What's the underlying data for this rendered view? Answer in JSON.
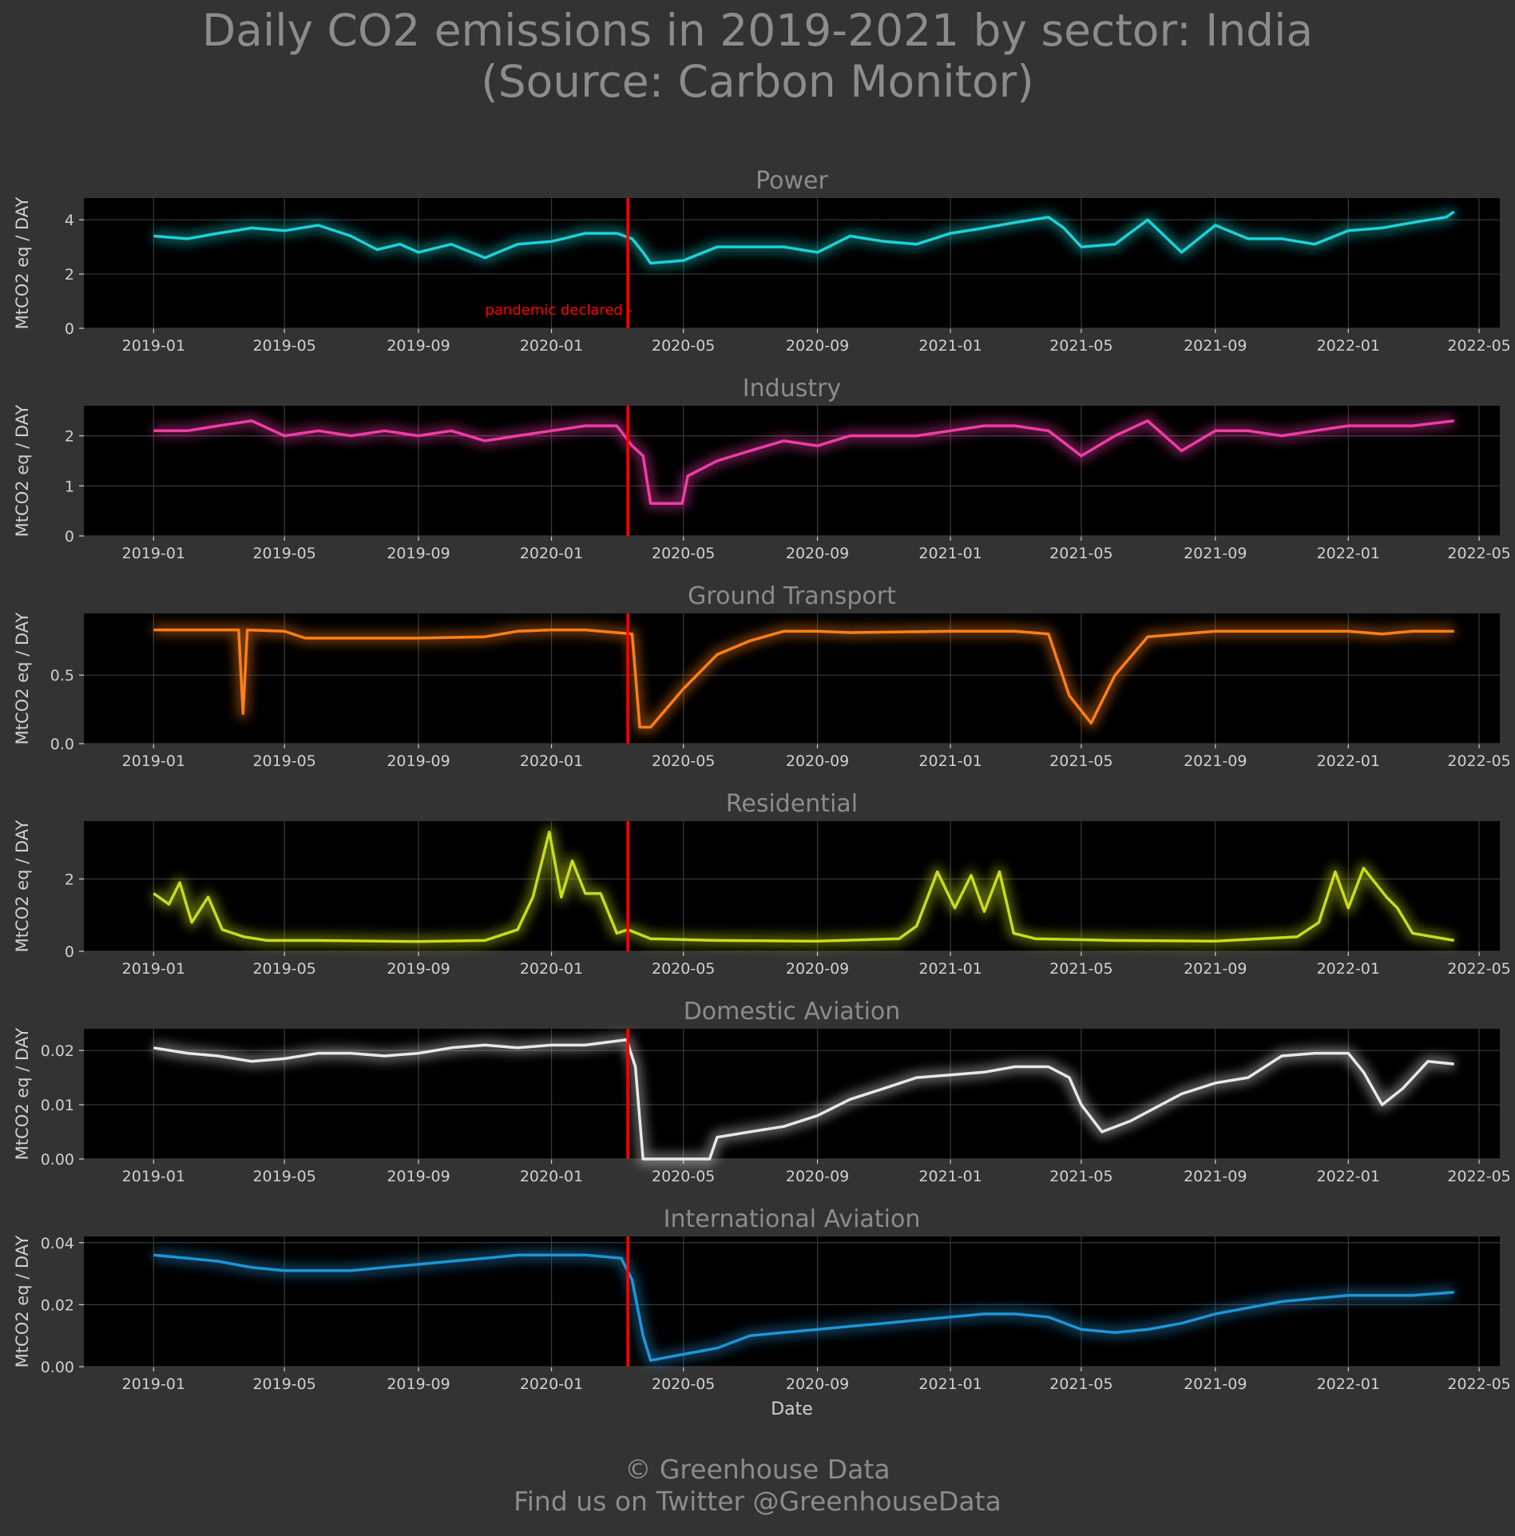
{
  "header": {
    "title_line1": "Daily CO2 emissions in 2019-2021 by sector: India",
    "title_line2": "(Source: Carbon Monitor)"
  },
  "footer": {
    "line1": "© Greenhouse Data",
    "line2": "Find us on Twitter @GreenhouseData"
  },
  "colors": {
    "page_background": "#333333",
    "plot_background": "#000000",
    "grid": "#3a3a3a",
    "text": "#d0d0d0",
    "title_text": "#8c8c8c",
    "pandemic_line": "#ff0000"
  },
  "chart_data": {
    "type": "line",
    "xlabel": "Date",
    "ylabel": "MtCO2 eq / DAY",
    "x_ticks": [
      "2019-01",
      "2019-05",
      "2019-09",
      "2020-01",
      "2020-05",
      "2020-09",
      "2021-01",
      "2021-05",
      "2021-09",
      "2022-01",
      "2022-05"
    ],
    "x_range": [
      "2018-10-29",
      "2022-05-20"
    ],
    "annotation": {
      "date": "2020-03-11",
      "label": "pandemic declared -"
    },
    "grid": true,
    "panels": [
      {
        "name": "Power",
        "color": "#1ad3d8",
        "ylim": [
          0,
          4.8
        ],
        "yticks": [
          0,
          2,
          4
        ],
        "ytick_labels": [
          "0",
          "2",
          "4"
        ],
        "points": [
          [
            "2019-01-01",
            3.4
          ],
          [
            "2019-02-01",
            3.3
          ],
          [
            "2019-03-01",
            3.5
          ],
          [
            "2019-04-01",
            3.7
          ],
          [
            "2019-05-01",
            3.6
          ],
          [
            "2019-06-01",
            3.8
          ],
          [
            "2019-07-01",
            3.4
          ],
          [
            "2019-07-25",
            2.9
          ],
          [
            "2019-08-15",
            3.1
          ],
          [
            "2019-09-01",
            2.8
          ],
          [
            "2019-10-01",
            3.1
          ],
          [
            "2019-11-01",
            2.6
          ],
          [
            "2019-12-01",
            3.1
          ],
          [
            "2020-01-01",
            3.2
          ],
          [
            "2020-02-01",
            3.5
          ],
          [
            "2020-03-01",
            3.5
          ],
          [
            "2020-03-15",
            3.3
          ],
          [
            "2020-03-25",
            2.8
          ],
          [
            "2020-04-01",
            2.4
          ],
          [
            "2020-05-01",
            2.5
          ],
          [
            "2020-06-01",
            3.0
          ],
          [
            "2020-07-01",
            3.0
          ],
          [
            "2020-08-01",
            3.0
          ],
          [
            "2020-09-01",
            2.8
          ],
          [
            "2020-10-01",
            3.4
          ],
          [
            "2020-11-01",
            3.2
          ],
          [
            "2020-12-01",
            3.1
          ],
          [
            "2021-01-01",
            3.5
          ],
          [
            "2021-02-01",
            3.7
          ],
          [
            "2021-03-01",
            3.9
          ],
          [
            "2021-04-01",
            4.1
          ],
          [
            "2021-04-15",
            3.7
          ],
          [
            "2021-05-01",
            3.0
          ],
          [
            "2021-06-01",
            3.1
          ],
          [
            "2021-07-01",
            4.0
          ],
          [
            "2021-08-01",
            2.8
          ],
          [
            "2021-09-01",
            3.8
          ],
          [
            "2021-10-01",
            3.3
          ],
          [
            "2021-11-01",
            3.3
          ],
          [
            "2021-12-01",
            3.1
          ],
          [
            "2022-01-01",
            3.6
          ],
          [
            "2022-02-01",
            3.7
          ],
          [
            "2022-03-01",
            3.9
          ],
          [
            "2022-04-01",
            4.1
          ],
          [
            "2022-04-08",
            4.3
          ]
        ]
      },
      {
        "name": "Industry",
        "color": "#f03ca6",
        "ylim": [
          0,
          2.6
        ],
        "yticks": [
          0,
          1,
          2
        ],
        "ytick_labels": [
          "0",
          "1",
          "2"
        ],
        "points": [
          [
            "2019-01-01",
            2.1
          ],
          [
            "2019-02-01",
            2.1
          ],
          [
            "2019-03-01",
            2.2
          ],
          [
            "2019-04-01",
            2.3
          ],
          [
            "2019-05-01",
            2.0
          ],
          [
            "2019-06-01",
            2.1
          ],
          [
            "2019-07-01",
            2.0
          ],
          [
            "2019-08-01",
            2.1
          ],
          [
            "2019-09-01",
            2.0
          ],
          [
            "2019-10-01",
            2.1
          ],
          [
            "2019-11-01",
            1.9
          ],
          [
            "2019-12-01",
            2.0
          ],
          [
            "2020-01-01",
            2.1
          ],
          [
            "2020-02-01",
            2.2
          ],
          [
            "2020-03-01",
            2.2
          ],
          [
            "2020-03-15",
            1.8
          ],
          [
            "2020-03-25",
            1.6
          ],
          [
            "2020-04-01",
            0.65
          ],
          [
            "2020-04-30",
            0.65
          ],
          [
            "2020-05-05",
            1.2
          ],
          [
            "2020-06-01",
            1.5
          ],
          [
            "2020-07-01",
            1.7
          ],
          [
            "2020-08-01",
            1.9
          ],
          [
            "2020-09-01",
            1.8
          ],
          [
            "2020-10-01",
            2.0
          ],
          [
            "2020-11-01",
            2.0
          ],
          [
            "2020-12-01",
            2.0
          ],
          [
            "2021-01-01",
            2.1
          ],
          [
            "2021-02-01",
            2.2
          ],
          [
            "2021-03-01",
            2.2
          ],
          [
            "2021-04-01",
            2.1
          ],
          [
            "2021-05-01",
            1.6
          ],
          [
            "2021-06-01",
            2.0
          ],
          [
            "2021-07-01",
            2.3
          ],
          [
            "2021-08-01",
            1.7
          ],
          [
            "2021-09-01",
            2.1
          ],
          [
            "2021-10-01",
            2.1
          ],
          [
            "2021-11-01",
            2.0
          ],
          [
            "2021-12-01",
            2.1
          ],
          [
            "2022-01-01",
            2.2
          ],
          [
            "2022-02-01",
            2.2
          ],
          [
            "2022-03-01",
            2.2
          ],
          [
            "2022-04-08",
            2.3
          ]
        ]
      },
      {
        "name": "Ground Transport",
        "color": "#ff7f17",
        "ylim": [
          0,
          0.95
        ],
        "yticks": [
          0,
          0.5
        ],
        "ytick_labels": [
          "0.0",
          "0.5"
        ],
        "points": [
          [
            "2019-01-01",
            0.83
          ],
          [
            "2019-02-01",
            0.83
          ],
          [
            "2019-03-20",
            0.83
          ],
          [
            "2019-03-24",
            0.22
          ],
          [
            "2019-03-28",
            0.83
          ],
          [
            "2019-05-01",
            0.82
          ],
          [
            "2019-05-20",
            0.77
          ],
          [
            "2019-07-01",
            0.77
          ],
          [
            "2019-09-01",
            0.77
          ],
          [
            "2019-11-01",
            0.78
          ],
          [
            "2019-12-01",
            0.82
          ],
          [
            "2020-01-01",
            0.83
          ],
          [
            "2020-02-01",
            0.83
          ],
          [
            "2020-03-15",
            0.8
          ],
          [
            "2020-03-22",
            0.12
          ],
          [
            "2020-04-01",
            0.12
          ],
          [
            "2020-05-01",
            0.4
          ],
          [
            "2020-06-01",
            0.65
          ],
          [
            "2020-07-01",
            0.75
          ],
          [
            "2020-08-01",
            0.82
          ],
          [
            "2020-09-01",
            0.82
          ],
          [
            "2020-10-01",
            0.81
          ],
          [
            "2021-01-01",
            0.82
          ],
          [
            "2021-03-01",
            0.82
          ],
          [
            "2021-04-01",
            0.8
          ],
          [
            "2021-04-20",
            0.35
          ],
          [
            "2021-05-10",
            0.15
          ],
          [
            "2021-06-01",
            0.5
          ],
          [
            "2021-07-01",
            0.78
          ],
          [
            "2021-09-01",
            0.82
          ],
          [
            "2021-11-01",
            0.82
          ],
          [
            "2022-01-01",
            0.82
          ],
          [
            "2022-02-01",
            0.8
          ],
          [
            "2022-03-01",
            0.82
          ],
          [
            "2022-04-08",
            0.82
          ]
        ]
      },
      {
        "name": "Residential",
        "color": "#c8dc1c",
        "ylim": [
          0,
          3.6
        ],
        "yticks": [
          0,
          2
        ],
        "ytick_labels": [
          "0",
          "2"
        ],
        "points": [
          [
            "2019-01-01",
            1.6
          ],
          [
            "2019-01-15",
            1.3
          ],
          [
            "2019-01-25",
            1.9
          ],
          [
            "2019-02-05",
            0.8
          ],
          [
            "2019-02-20",
            1.5
          ],
          [
            "2019-03-05",
            0.6
          ],
          [
            "2019-03-25",
            0.4
          ],
          [
            "2019-04-15",
            0.3
          ],
          [
            "2019-06-01",
            0.3
          ],
          [
            "2019-09-01",
            0.27
          ],
          [
            "2019-11-01",
            0.3
          ],
          [
            "2019-12-01",
            0.6
          ],
          [
            "2019-12-15",
            1.5
          ],
          [
            "2019-12-30",
            3.3
          ],
          [
            "2020-01-10",
            1.5
          ],
          [
            "2020-01-20",
            2.5
          ],
          [
            "2020-02-01",
            1.6
          ],
          [
            "2020-02-15",
            1.6
          ],
          [
            "2020-03-01",
            0.5
          ],
          [
            "2020-03-11",
            0.6
          ],
          [
            "2020-04-01",
            0.35
          ],
          [
            "2020-06-01",
            0.3
          ],
          [
            "2020-09-01",
            0.28
          ],
          [
            "2020-11-15",
            0.35
          ],
          [
            "2020-12-01",
            0.7
          ],
          [
            "2020-12-20",
            2.2
          ],
          [
            "2021-01-05",
            1.2
          ],
          [
            "2021-01-20",
            2.1
          ],
          [
            "2021-02-01",
            1.1
          ],
          [
            "2021-02-15",
            2.2
          ],
          [
            "2021-02-28",
            0.5
          ],
          [
            "2021-03-20",
            0.35
          ],
          [
            "2021-06-01",
            0.3
          ],
          [
            "2021-09-01",
            0.28
          ],
          [
            "2021-11-15",
            0.4
          ],
          [
            "2021-12-05",
            0.8
          ],
          [
            "2021-12-20",
            2.2
          ],
          [
            "2022-01-01",
            1.2
          ],
          [
            "2022-01-15",
            2.3
          ],
          [
            "2022-02-05",
            1.5
          ],
          [
            "2022-02-15",
            1.2
          ],
          [
            "2022-03-01",
            0.5
          ],
          [
            "2022-04-08",
            0.3
          ]
        ]
      },
      {
        "name": "Domestic Aviation",
        "color": "#e8e8e8",
        "ylim": [
          0,
          0.024
        ],
        "yticks": [
          0,
          0.01,
          0.02
        ],
        "ytick_labels": [
          "0.00",
          "0.01",
          "0.02"
        ],
        "points": [
          [
            "2019-01-01",
            0.0205
          ],
          [
            "2019-02-01",
            0.0195
          ],
          [
            "2019-03-01",
            0.019
          ],
          [
            "2019-04-01",
            0.018
          ],
          [
            "2019-05-01",
            0.0185
          ],
          [
            "2019-06-01",
            0.0195
          ],
          [
            "2019-07-01",
            0.0195
          ],
          [
            "2019-08-01",
            0.019
          ],
          [
            "2019-09-01",
            0.0195
          ],
          [
            "2019-10-01",
            0.0205
          ],
          [
            "2019-11-01",
            0.021
          ],
          [
            "2019-12-01",
            0.0205
          ],
          [
            "2020-01-01",
            0.021
          ],
          [
            "2020-02-01",
            0.021
          ],
          [
            "2020-03-10",
            0.022
          ],
          [
            "2020-03-18",
            0.017
          ],
          [
            "2020-03-25",
            0.0
          ],
          [
            "2020-05-25",
            0.0
          ],
          [
            "2020-06-01",
            0.004
          ],
          [
            "2020-07-01",
            0.005
          ],
          [
            "2020-08-01",
            0.006
          ],
          [
            "2020-09-01",
            0.008
          ],
          [
            "2020-10-01",
            0.011
          ],
          [
            "2020-11-01",
            0.013
          ],
          [
            "2020-12-01",
            0.015
          ],
          [
            "2021-01-01",
            0.0155
          ],
          [
            "2021-02-01",
            0.016
          ],
          [
            "2021-03-01",
            0.017
          ],
          [
            "2021-04-01",
            0.017
          ],
          [
            "2021-04-20",
            0.015
          ],
          [
            "2021-05-01",
            0.01
          ],
          [
            "2021-05-20",
            0.005
          ],
          [
            "2021-06-15",
            0.007
          ],
          [
            "2021-08-01",
            0.012
          ],
          [
            "2021-09-01",
            0.014
          ],
          [
            "2021-10-01",
            0.015
          ],
          [
            "2021-11-01",
            0.019
          ],
          [
            "2021-12-01",
            0.0195
          ],
          [
            "2022-01-01",
            0.0195
          ],
          [
            "2022-01-15",
            0.016
          ],
          [
            "2022-02-01",
            0.01
          ],
          [
            "2022-02-20",
            0.013
          ],
          [
            "2022-03-15",
            0.018
          ],
          [
            "2022-04-08",
            0.0175
          ]
        ]
      },
      {
        "name": "International Aviation",
        "color": "#1f95d7",
        "ylim": [
          0,
          0.042
        ],
        "yticks": [
          0,
          0.02,
          0.04
        ],
        "ytick_labels": [
          "0.00",
          "0.02",
          "0.04"
        ],
        "points": [
          [
            "2019-01-01",
            0.036
          ],
          [
            "2019-02-01",
            0.035
          ],
          [
            "2019-03-01",
            0.034
          ],
          [
            "2019-04-01",
            0.032
          ],
          [
            "2019-05-01",
            0.031
          ],
          [
            "2019-06-01",
            0.031
          ],
          [
            "2019-07-01",
            0.031
          ],
          [
            "2019-08-01",
            0.032
          ],
          [
            "2019-09-01",
            0.033
          ],
          [
            "2019-10-01",
            0.034
          ],
          [
            "2019-11-01",
            0.035
          ],
          [
            "2019-12-01",
            0.036
          ],
          [
            "2020-01-01",
            0.036
          ],
          [
            "2020-02-01",
            0.036
          ],
          [
            "2020-03-05",
            0.035
          ],
          [
            "2020-03-15",
            0.028
          ],
          [
            "2020-03-25",
            0.01
          ],
          [
            "2020-04-01",
            0.002
          ],
          [
            "2020-05-01",
            0.004
          ],
          [
            "2020-06-01",
            0.006
          ],
          [
            "2020-07-01",
            0.01
          ],
          [
            "2020-08-01",
            0.011
          ],
          [
            "2020-09-01",
            0.012
          ],
          [
            "2020-10-01",
            0.013
          ],
          [
            "2020-11-01",
            0.014
          ],
          [
            "2020-12-01",
            0.015
          ],
          [
            "2021-01-01",
            0.016
          ],
          [
            "2021-02-01",
            0.017
          ],
          [
            "2021-03-01",
            0.017
          ],
          [
            "2021-04-01",
            0.016
          ],
          [
            "2021-05-01",
            0.012
          ],
          [
            "2021-06-01",
            0.011
          ],
          [
            "2021-07-01",
            0.012
          ],
          [
            "2021-08-01",
            0.014
          ],
          [
            "2021-09-01",
            0.017
          ],
          [
            "2021-10-01",
            0.019
          ],
          [
            "2021-11-01",
            0.021
          ],
          [
            "2021-12-01",
            0.022
          ],
          [
            "2022-01-01",
            0.023
          ],
          [
            "2022-02-01",
            0.023
          ],
          [
            "2022-03-01",
            0.023
          ],
          [
            "2022-04-08",
            0.024
          ]
        ]
      }
    ]
  }
}
